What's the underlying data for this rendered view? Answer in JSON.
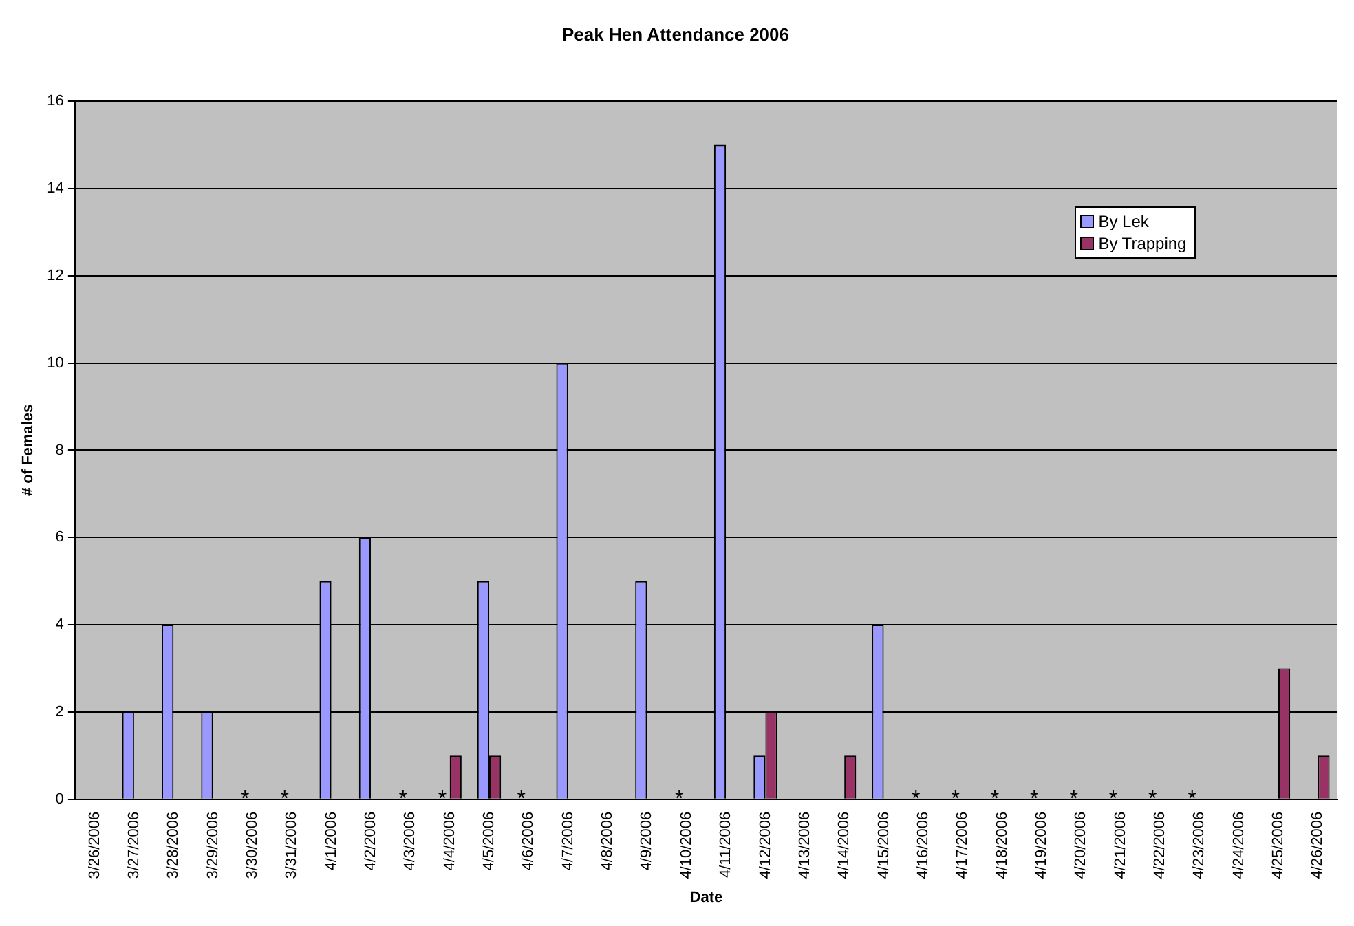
{
  "chart_data": {
    "type": "bar",
    "title": "Peak Hen Attendance 2006",
    "xlabel": "Date",
    "ylabel": "# of Females",
    "categories": [
      "3/26/2006",
      "3/27/2006",
      "3/28/2006",
      "3/29/2006",
      "3/30/2006",
      "3/31/2006",
      "4/1/2006",
      "4/2/2006",
      "4/3/2006",
      "4/4/2006",
      "4/5/2006",
      "4/6/2006",
      "4/7/2006",
      "4/8/2006",
      "4/9/2006",
      "4/10/2006",
      "4/11/2006",
      "4/12/2006",
      "4/13/2006",
      "4/14/2006",
      "4/15/2006",
      "4/16/2006",
      "4/17/2006",
      "4/18/2006",
      "4/19/2006",
      "4/20/2006",
      "4/21/2006",
      "4/22/2006",
      "4/23/2006",
      "4/24/2006",
      "4/25/2006",
      "4/26/2006"
    ],
    "series": [
      {
        "name": "By Lek",
        "color": "#9999ff",
        "values": [
          0,
          2,
          4,
          2,
          0,
          0,
          5,
          6,
          0,
          0,
          5,
          0,
          10,
          0,
          5,
          0,
          15,
          1,
          0,
          0,
          4,
          0,
          0,
          0,
          0,
          0,
          0,
          0,
          0,
          0,
          0,
          0
        ]
      },
      {
        "name": "By Trapping",
        "color": "#993366",
        "values": [
          0,
          0,
          0,
          0,
          0,
          0,
          0,
          0,
          0,
          1,
          1,
          0,
          0,
          0,
          0,
          0,
          0,
          2,
          0,
          1,
          0,
          0,
          0,
          0,
          0,
          0,
          0,
          0,
          0,
          0,
          3,
          1
        ]
      }
    ],
    "ylim": [
      0,
      16
    ],
    "yticks": [
      0,
      2,
      4,
      6,
      8,
      10,
      12,
      14,
      16
    ],
    "grid": "y",
    "legend": "top right",
    "annotations": [
      {
        "text": "*",
        "x": "3/30/2006",
        "y": 0
      },
      {
        "text": "*",
        "x": "3/31/2006",
        "y": 0
      },
      {
        "text": "*",
        "x": "4/3/2006",
        "y": 0
      },
      {
        "text": "*",
        "x": "4/4/2006",
        "y": 0
      },
      {
        "text": "*",
        "x": "4/6/2006",
        "y": 0
      },
      {
        "text": "*",
        "x": "4/10/2006",
        "y": 0
      },
      {
        "text": "*",
        "x": "4/16/2006",
        "y": 0
      },
      {
        "text": "*",
        "x": "4/17/2006",
        "y": 0
      },
      {
        "text": "*",
        "x": "4/18/2006",
        "y": 0
      },
      {
        "text": "*",
        "x": "4/19/2006",
        "y": 0
      },
      {
        "text": "*",
        "x": "4/20/2006",
        "y": 0
      },
      {
        "text": "*",
        "x": "4/21/2006",
        "y": 0
      },
      {
        "text": "*",
        "x": "4/22/2006",
        "y": 0
      },
      {
        "text": "*",
        "x": "4/23/2006",
        "y": 0
      }
    ]
  }
}
